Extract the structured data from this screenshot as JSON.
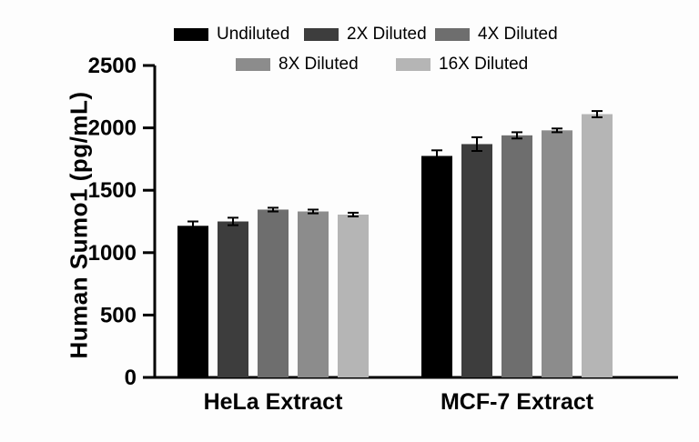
{
  "chart_data": {
    "type": "bar",
    "title": "",
    "ylabel": "Human Sumo1 (pg/mL)",
    "xlabel": "",
    "categories": [
      "HeLa Extract",
      "MCF-7 Extract"
    ],
    "series": [
      {
        "name": "Undiluted",
        "color": "#000000",
        "values": [
          1215,
          1775
        ],
        "errors": [
          35,
          45
        ]
      },
      {
        "name": "2X Diluted",
        "color": "#3d3d3d",
        "values": [
          1250,
          1870
        ],
        "errors": [
          30,
          55
        ]
      },
      {
        "name": "4X Diluted",
        "color": "#6e6e6e",
        "values": [
          1345,
          1940
        ],
        "errors": [
          15,
          25
        ]
      },
      {
        "name": "8X Diluted",
        "color": "#8c8c8c",
        "values": [
          1330,
          1980
        ],
        "errors": [
          15,
          15
        ]
      },
      {
        "name": "16X Diluted",
        "color": "#b5b5b5",
        "values": [
          1305,
          2110
        ],
        "errors": [
          15,
          25
        ]
      }
    ],
    "ylim": [
      0,
      2500
    ],
    "yticks": [
      0,
      500,
      1000,
      1500,
      2000,
      2500
    ],
    "grid": false,
    "legend_position": "top",
    "error_bars": true
  }
}
